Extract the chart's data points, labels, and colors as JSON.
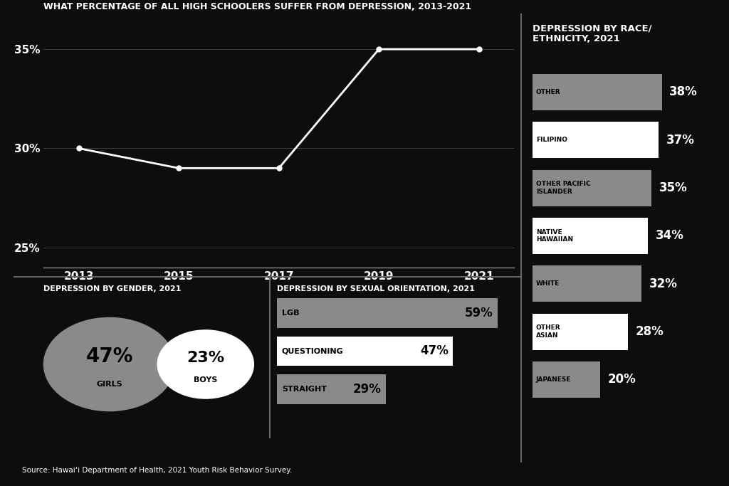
{
  "bg_color": "#0d0d0d",
  "text_color": "#ffffff",
  "line_title": "WHAT PERCENTAGE OF ALL HIGH SCHOOLERS SUFFER FROM DEPRESSION, 2013-2021",
  "line_years": [
    2013,
    2015,
    2017,
    2019,
    2021
  ],
  "line_values": [
    30,
    29,
    29,
    35,
    35
  ],
  "line_yticks": [
    25,
    30,
    35
  ],
  "line_ytick_labels": [
    "25%",
    "30%",
    "35%"
  ],
  "gender_title": "DEPRESSION BY GENDER, 2021",
  "girls_pct": "47%",
  "girls_label": "GIRLS",
  "boys_pct": "23%",
  "boys_label": "BOYS",
  "girls_color": "#8a8a8a",
  "boys_color": "#ffffff",
  "orientation_title": "DEPRESSION BY SEXUAL ORIENTATION, 2021",
  "orientation_labels": [
    "LGB",
    "QUESTIONING",
    "STRAIGHT"
  ],
  "orientation_values": [
    59,
    47,
    29
  ],
  "orientation_pcts": [
    "59%",
    "47%",
    "29%"
  ],
  "orientation_colors": [
    "#8a8a8a",
    "#ffffff",
    "#8a8a8a"
  ],
  "race_title": "DEPRESSION BY RACE/\nETHNICITY, 2021",
  "race_labels": [
    "OTHER",
    "FILIPINO",
    "OTHER PACIFIC\nISLANDER",
    "NATIVE\nHAWAIIAN",
    "WHITE",
    "OTHER\nASIAN",
    "JAPANESE"
  ],
  "race_values": [
    38,
    37,
    35,
    34,
    32,
    28,
    20
  ],
  "race_pcts": [
    "38%",
    "37%",
    "35%",
    "34%",
    "32%",
    "28%",
    "20%"
  ],
  "race_colors": [
    "#8a8a8a",
    "#ffffff",
    "#8a8a8a",
    "#ffffff",
    "#8a8a8a",
    "#ffffff",
    "#8a8a8a"
  ],
  "source_text": "Source: Hawaiʻi Department of Health, 2021 Youth Risk Behavior Survey."
}
